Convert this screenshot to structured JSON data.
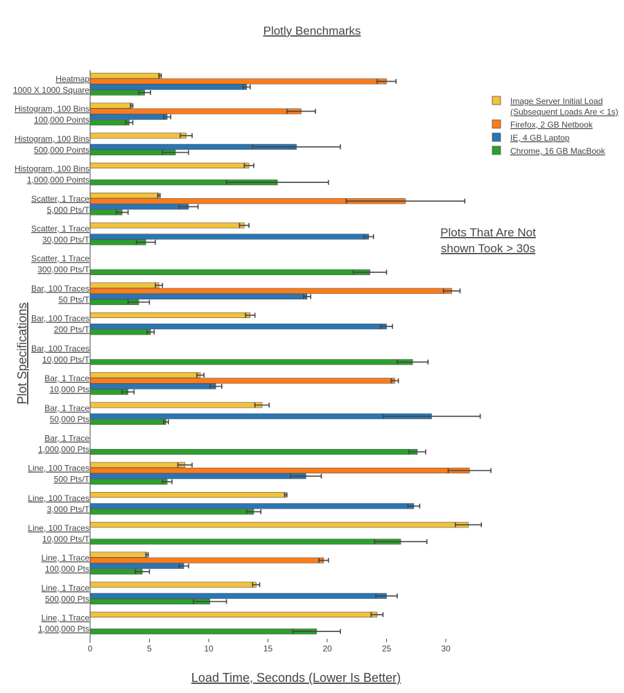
{
  "colors": {
    "image_server": "#f3c13a",
    "firefox": "#fc7c1a",
    "ie": "#2a76b4",
    "chrome": "#2ca02c",
    "error_bar": "#444444",
    "bar_outline": "#555555",
    "text": "#444444"
  },
  "chart_data": {
    "type": "bar",
    "orientation": "horizontal",
    "title": "Plotly Benchmarks",
    "xlabel": "Load Time, Seconds (Lower Is Better)",
    "ylabel": "Plot Specifications",
    "xlim": [
      0,
      35
    ],
    "xticks": [
      0,
      5,
      10,
      15,
      20,
      25,
      30
    ],
    "grid": false,
    "legend_position": "top-right",
    "annotation": [
      "Plots That Are Not",
      "shown Took > 30s"
    ],
    "legend": [
      {
        "key": "image_server",
        "lines": [
          "Image Server Initial Load",
          "(Subsequent Loads Are < 1s)"
        ]
      },
      {
        "key": "firefox",
        "lines": [
          "Firefox, 2 GB Netbook"
        ]
      },
      {
        "key": "ie",
        "lines": [
          "IE, 4 GB Laptop"
        ]
      },
      {
        "key": "chrome",
        "lines": [
          "Chrome, 16 GB MacBook"
        ]
      }
    ],
    "categories": [
      {
        "label": [
          "Heatmap",
          "1000 X 1000 Square"
        ],
        "values": {
          "image_server": [
            5.9,
            0.1
          ],
          "firefox": [
            25.0,
            0.8
          ],
          "ie": [
            13.2,
            0.3
          ],
          "chrome": [
            4.6,
            0.5
          ]
        }
      },
      {
        "label": [
          "Histogram, 100 Bins",
          "100,000 Points"
        ],
        "values": {
          "image_server": [
            3.5,
            0.1
          ],
          "firefox": [
            17.8,
            1.2
          ],
          "ie": [
            6.5,
            0.3
          ],
          "chrome": [
            3.3,
            0.3
          ]
        }
      },
      {
        "label": [
          "Histogram, 100 Bins",
          "500,000 Points"
        ],
        "values": {
          "image_server": [
            8.1,
            0.5
          ],
          "firefox": null,
          "ie": [
            17.4,
            3.7
          ],
          "chrome": [
            7.2,
            1.1
          ]
        }
      },
      {
        "label": [
          "Histogram, 100 Bins",
          "1,000,000 Points"
        ],
        "values": {
          "image_server": [
            13.4,
            0.4
          ],
          "firefox": null,
          "ie": null,
          "chrome": [
            15.8,
            4.3
          ]
        }
      },
      {
        "label": [
          "Scatter, 1 Trace",
          "5,000 Pts/T"
        ],
        "values": {
          "image_server": [
            5.8,
            0.1
          ],
          "firefox": [
            26.6,
            5.0
          ],
          "ie": [
            8.3,
            0.8
          ],
          "chrome": [
            2.7,
            0.5
          ]
        }
      },
      {
        "label": [
          "Scatter, 1 Trace",
          "30,000 Pts/T"
        ],
        "values": {
          "image_server": [
            13.0,
            0.4
          ],
          "firefox": null,
          "ie": [
            23.5,
            0.4
          ],
          "chrome": [
            4.7,
            0.8
          ]
        }
      },
      {
        "label": [
          "Scatter, 1 Trace",
          "300,000 Pts/T"
        ],
        "values": {
          "image_server": null,
          "firefox": null,
          "ie": null,
          "chrome": [
            23.6,
            1.4
          ]
        }
      },
      {
        "label": [
          "Bar, 100 Traces",
          "50 Pts/T"
        ],
        "values": {
          "image_server": [
            5.8,
            0.3
          ],
          "firefox": [
            30.5,
            0.7
          ],
          "ie": [
            18.3,
            0.3
          ],
          "chrome": [
            4.1,
            0.9
          ]
        }
      },
      {
        "label": [
          "Bar, 100 Traces",
          "200 Pts/T"
        ],
        "values": {
          "image_server": [
            13.5,
            0.4
          ],
          "firefox": null,
          "ie": [
            25.0,
            0.5
          ],
          "chrome": [
            5.1,
            0.3
          ]
        }
      },
      {
        "label": [
          "Bar, 100 Traces",
          "10,000 Pts/T"
        ],
        "values": {
          "image_server": null,
          "firefox": null,
          "ie": null,
          "chrome": [
            27.2,
            1.3
          ]
        }
      },
      {
        "label": [
          "Bar, 1 Trace",
          "10,000 Pts"
        ],
        "values": {
          "image_server": [
            9.3,
            0.3
          ],
          "firefox": [
            25.7,
            0.3
          ],
          "ie": [
            10.6,
            0.5
          ],
          "chrome": [
            3.2,
            0.5
          ]
        }
      },
      {
        "label": [
          "Bar, 1 Trace",
          "50,000 Pts"
        ],
        "values": {
          "image_server": [
            14.5,
            0.6
          ],
          "firefox": null,
          "ie": [
            28.8,
            4.1
          ],
          "chrome": [
            6.4,
            0.2
          ]
        }
      },
      {
        "label": [
          "Bar, 1 Trace",
          "1,000,000 Pts"
        ],
        "values": {
          "image_server": null,
          "firefox": null,
          "ie": null,
          "chrome": [
            27.6,
            0.7
          ]
        }
      },
      {
        "label": [
          "Line, 100 Traces",
          "500 Pts/T"
        ],
        "values": {
          "image_server": [
            8.0,
            0.6
          ],
          "firefox": [
            32.0,
            1.8
          ],
          "ie": [
            18.2,
            1.3
          ],
          "chrome": [
            6.5,
            0.4
          ]
        }
      },
      {
        "label": [
          "Line, 100 Traces",
          "3,000 Pts/T"
        ],
        "values": {
          "image_server": [
            16.5,
            0.1
          ],
          "firefox": null,
          "ie": [
            27.3,
            0.5
          ],
          "chrome": [
            13.8,
            0.6
          ]
        }
      },
      {
        "label": [
          "Line, 100 Traces",
          "10,000 Pts/T"
        ],
        "values": {
          "image_server": [
            31.9,
            1.1
          ],
          "firefox": null,
          "ie": null,
          "chrome": [
            26.2,
            2.2
          ]
        }
      },
      {
        "label": [
          "Line, 1 Trace",
          "100,000 Pts"
        ],
        "values": {
          "image_server": [
            4.8,
            0.1
          ],
          "firefox": [
            19.7,
            0.4
          ],
          "ie": [
            7.9,
            0.4
          ],
          "chrome": [
            4.4,
            0.6
          ]
        }
      },
      {
        "label": [
          "Line, 1 Trace",
          "500,000 Pts"
        ],
        "values": {
          "image_server": [
            14.0,
            0.3
          ],
          "firefox": null,
          "ie": [
            25.0,
            0.9
          ],
          "chrome": [
            10.1,
            1.4
          ]
        }
      },
      {
        "label": [
          "Line, 1 Trace",
          "1,000,000 Pts"
        ],
        "values": {
          "image_server": [
            24.2,
            0.5
          ],
          "firefox": null,
          "ie": null,
          "chrome": [
            19.1,
            2.0
          ]
        }
      }
    ]
  }
}
